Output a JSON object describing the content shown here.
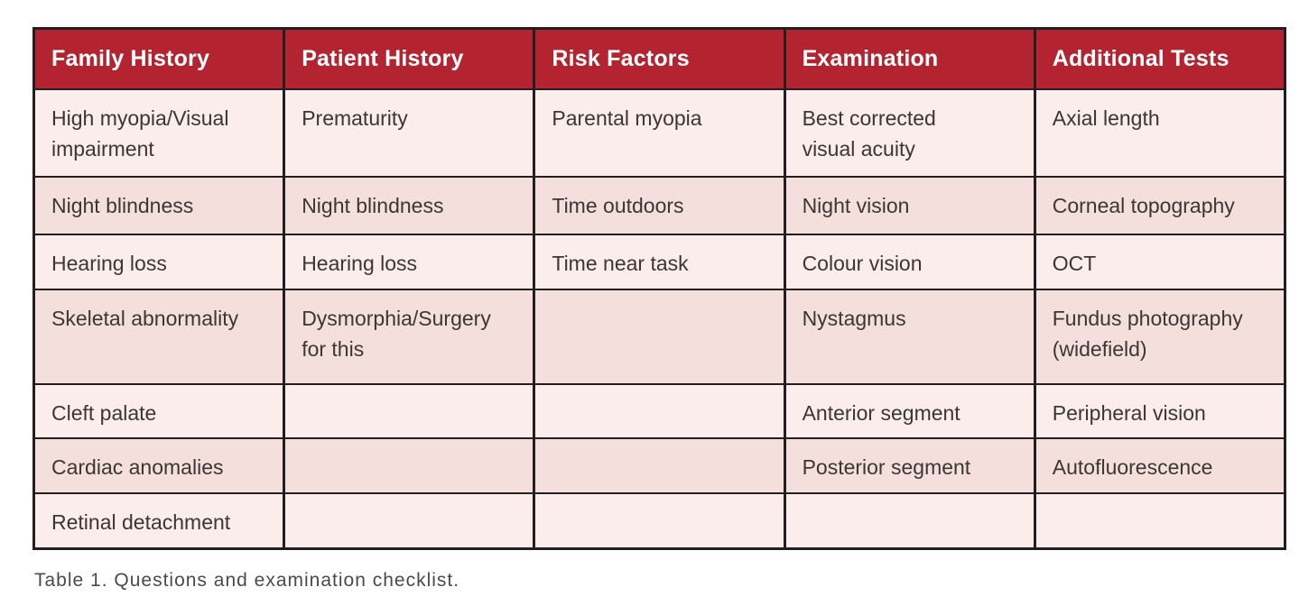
{
  "caption": "Table 1. Questions and examination checklist.",
  "colors": {
    "header_bg": "#b42430",
    "header_text": "#ffffff",
    "row_light": "#faedeb",
    "row_dark": "#f5dfdc",
    "border": "#231f20",
    "body_text": "#3b3734",
    "caption_text": "#4a4a4a"
  },
  "table": {
    "columns": [
      "Family History",
      "Patient History",
      "Risk Factors",
      "Examination",
      "Additional Tests"
    ],
    "rows": [
      [
        "High myopia/Visual\nimpairment",
        "Prematurity",
        "Parental myopia",
        "Best corrected\nvisual acuity",
        "Axial length"
      ],
      [
        "Night blindness",
        "Night blindness",
        "Time outdoors",
        "Night vision",
        "Corneal topography"
      ],
      [
        "Hearing loss",
        "Hearing loss",
        "Time near task",
        "Colour vision",
        "OCT"
      ],
      [
        "Skeletal abnormality",
        "Dysmorphia/Surgery\nfor this",
        "",
        "Nystagmus",
        "Fundus photography\n(widefield)"
      ],
      [
        "Cleft palate",
        "",
        "",
        "Anterior segment",
        "Peripheral vision"
      ],
      [
        "Cardiac anomalies",
        "",
        "",
        "Posterior segment",
        "Autofluorescence"
      ],
      [
        "Retinal detachment",
        "",
        "",
        "",
        ""
      ]
    ]
  },
  "chart_data": {
    "type": "table",
    "title": "Table 1. Questions and examination checklist.",
    "columns": [
      "Family History",
      "Patient History",
      "Risk Factors",
      "Examination",
      "Additional Tests"
    ],
    "rows": [
      [
        "High myopia/Visual impairment",
        "Prematurity",
        "Parental myopia",
        "Best corrected visual acuity",
        "Axial length"
      ],
      [
        "Night blindness",
        "Night blindness",
        "Time outdoors",
        "Night vision",
        "Corneal topography"
      ],
      [
        "Hearing loss",
        "Hearing loss",
        "Time near task",
        "Colour vision",
        "OCT"
      ],
      [
        "Skeletal abnormality",
        "Dysmorphia/Surgery for this",
        "",
        "Nystagmus",
        "Fundus photography (widefield)"
      ],
      [
        "Cleft palate",
        "",
        "",
        "Anterior segment",
        "Peripheral vision"
      ],
      [
        "Cardiac anomalies",
        "",
        "",
        "Posterior segment",
        "Autofluorescence"
      ],
      [
        "Retinal detachment",
        "",
        "",
        "",
        ""
      ]
    ]
  }
}
